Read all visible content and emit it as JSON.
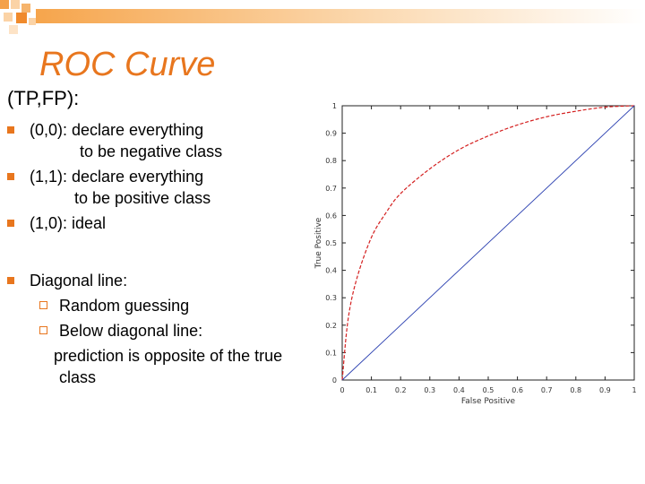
{
  "slide": {
    "title": "ROC Curve",
    "subtitle": "(TP,FP):",
    "bullets": [
      {
        "line1": "(0,0): declare everything",
        "line2": "to be negative class"
      },
      {
        "line1": "(1,1): declare everything",
        "line2": "to be positive class"
      },
      {
        "line1": "(1,0): ideal"
      },
      {
        "line1": "Diagonal line:"
      }
    ],
    "sub_bullets": [
      "Random guessing",
      "Below diagonal line:"
    ],
    "note_lines": [
      "prediction is opposite of the true",
      "class"
    ]
  },
  "colors": {
    "accent": "#e8761e",
    "curve": "#d42020",
    "diagonal": "#2a3fb0"
  },
  "chart_data": {
    "type": "line",
    "xlabel": "False Positive",
    "ylabel": "True Positive",
    "xlim": [
      0,
      1
    ],
    "ylim": [
      0,
      1
    ],
    "x_ticks": [
      "0",
      "0.1",
      "0.2",
      "0.3",
      "0.4",
      "0.5",
      "0.6",
      "0.7",
      "0.8",
      "0.9",
      "1"
    ],
    "y_ticks": [
      "0",
      "0.1",
      "0.2",
      "0.3",
      "0.4",
      "0.5",
      "0.6",
      "0.7",
      "0.8",
      "0.9",
      "1"
    ],
    "series": [
      {
        "style": "dashed",
        "x": [
          0,
          0.02,
          0.05,
          0.1,
          0.15,
          0.2,
          0.3,
          0.4,
          0.5,
          0.6,
          0.7,
          0.8,
          0.9,
          1.0
        ],
        "y": [
          0,
          0.22,
          0.37,
          0.52,
          0.61,
          0.68,
          0.77,
          0.84,
          0.89,
          0.93,
          0.96,
          0.98,
          0.995,
          1.0
        ]
      },
      {
        "style": "solid",
        "x": [
          0,
          1
        ],
        "y": [
          0,
          1
        ]
      }
    ]
  }
}
